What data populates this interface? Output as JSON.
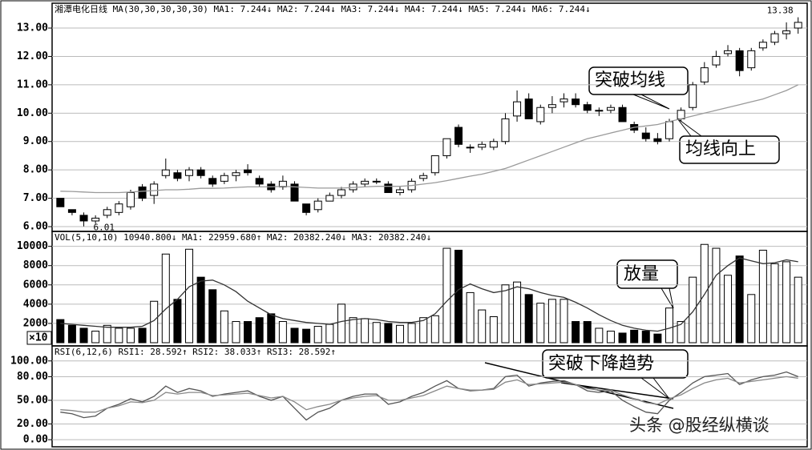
{
  "chart_data": [
    {
      "type": "candlestick",
      "title": "湘潭电化日线 MA(30,30,30,30,30) MA1: 7.244↓ MA2: 7.244↓ MA3: 7.244↓ MA4: 7.244↓ MA5: 7.244↓ MA6: 7.244↓",
      "ylim": [
        5.86,
        13.65
      ],
      "yticks": [
        {
          "value": 6,
          "label": "6.00"
        },
        {
          "value": 7,
          "label": "7.00"
        },
        {
          "value": 8,
          "label": "8.00"
        },
        {
          "value": 9,
          "label": "9.00"
        },
        {
          "value": 10,
          "label": "10.00"
        },
        {
          "value": 11,
          "label": "11.00"
        },
        {
          "value": 12,
          "label": "12.00"
        },
        {
          "value": 13,
          "label": "13.00"
        }
      ],
      "grid": true,
      "candles": [
        [
          7.0,
          7.0,
          6.7,
          6.7
        ],
        [
          6.6,
          6.6,
          6.4,
          6.5
        ],
        [
          6.4,
          6.5,
          6.01,
          6.2
        ],
        [
          6.2,
          6.4,
          6.1,
          6.3
        ],
        [
          6.4,
          6.7,
          6.3,
          6.6
        ],
        [
          6.5,
          6.9,
          6.4,
          6.8
        ],
        [
          6.7,
          7.3,
          6.6,
          7.2
        ],
        [
          7.4,
          7.5,
          6.9,
          7.0
        ],
        [
          7.1,
          7.6,
          6.8,
          7.5
        ],
        [
          7.8,
          8.4,
          7.7,
          8.0
        ],
        [
          7.9,
          8.0,
          7.6,
          7.7
        ],
        [
          7.8,
          8.1,
          7.6,
          8.0
        ],
        [
          8.0,
          8.1,
          7.7,
          7.8
        ],
        [
          7.7,
          7.8,
          7.4,
          7.5
        ],
        [
          7.6,
          7.9,
          7.5,
          7.8
        ],
        [
          7.8,
          8.0,
          7.6,
          7.9
        ],
        [
          8.0,
          8.2,
          7.8,
          7.9
        ],
        [
          7.7,
          7.8,
          7.4,
          7.5
        ],
        [
          7.5,
          7.6,
          7.2,
          7.3
        ],
        [
          7.4,
          7.8,
          7.3,
          7.6
        ],
        [
          7.5,
          7.6,
          6.9,
          6.9
        ],
        [
          6.8,
          6.8,
          6.4,
          6.5
        ],
        [
          6.6,
          7.0,
          6.5,
          6.9
        ],
        [
          6.9,
          7.2,
          6.9,
          7.1
        ],
        [
          7.1,
          7.4,
          7.0,
          7.3
        ],
        [
          7.3,
          7.6,
          7.2,
          7.5
        ],
        [
          7.5,
          7.7,
          7.4,
          7.6
        ],
        [
          7.6,
          7.7,
          7.5,
          7.6
        ],
        [
          7.5,
          7.6,
          7.2,
          7.2
        ],
        [
          7.2,
          7.4,
          7.1,
          7.3
        ],
        [
          7.3,
          7.7,
          7.2,
          7.6
        ],
        [
          7.7,
          7.9,
          7.6,
          7.8
        ],
        [
          7.9,
          8.5,
          7.8,
          8.5
        ],
        [
          8.5,
          9.1,
          8.4,
          9.1
        ],
        [
          9.5,
          9.6,
          8.8,
          8.9
        ],
        [
          8.8,
          8.9,
          8.6,
          8.8
        ],
        [
          8.8,
          9.0,
          8.7,
          8.9
        ],
        [
          8.8,
          9.1,
          8.7,
          9.0
        ],
        [
          9.0,
          10.0,
          8.9,
          9.8
        ],
        [
          9.9,
          10.8,
          9.7,
          10.4
        ],
        [
          10.5,
          10.7,
          9.8,
          9.8
        ],
        [
          9.7,
          10.3,
          9.6,
          10.2
        ],
        [
          10.2,
          10.6,
          10.0,
          10.3
        ],
        [
          10.4,
          10.7,
          10.2,
          10.5
        ],
        [
          10.5,
          10.7,
          10.2,
          10.3
        ],
        [
          10.3,
          10.4,
          10.0,
          10.1
        ],
        [
          10.1,
          10.2,
          9.9,
          10.1
        ],
        [
          10.1,
          10.3,
          10.0,
          10.2
        ],
        [
          10.2,
          10.3,
          9.7,
          9.7
        ],
        [
          9.6,
          9.7,
          9.3,
          9.4
        ],
        [
          9.3,
          9.5,
          9.0,
          9.1
        ],
        [
          9.1,
          9.3,
          8.9,
          9.0
        ],
        [
          9.1,
          9.8,
          9.0,
          9.7
        ],
        [
          9.8,
          10.2,
          9.7,
          10.1
        ],
        [
          10.2,
          11.1,
          10.1,
          11.0
        ],
        [
          11.1,
          11.8,
          11.0,
          11.6
        ],
        [
          11.7,
          12.2,
          11.6,
          12.0
        ],
        [
          12.1,
          12.4,
          12.0,
          12.2
        ],
        [
          12.2,
          12.3,
          11.3,
          11.5
        ],
        [
          11.6,
          12.3,
          11.5,
          12.2
        ],
        [
          12.3,
          12.6,
          12.2,
          12.5
        ],
        [
          12.5,
          12.9,
          12.4,
          12.8
        ],
        [
          12.8,
          13.2,
          12.6,
          12.9
        ],
        [
          13.0,
          13.38,
          12.8,
          13.2
        ]
      ],
      "up_color": "#ffffff",
      "down_color": "#000000",
      "series": [
        {
          "color": "#9a9a9a",
          "values": [
            7.25,
            7.24,
            7.22,
            7.2,
            7.2,
            7.2,
            7.22,
            7.25,
            7.27,
            7.3,
            7.3,
            7.32,
            7.35,
            7.35,
            7.36,
            7.38,
            7.4,
            7.4,
            7.4,
            7.42,
            7.4,
            7.38,
            7.36,
            7.36,
            7.36,
            7.38,
            7.4,
            7.42,
            7.42,
            7.42,
            7.45,
            7.5,
            7.55,
            7.62,
            7.7,
            7.78,
            7.85,
            7.95,
            8.05,
            8.2,
            8.35,
            8.5,
            8.65,
            8.8,
            8.95,
            9.1,
            9.2,
            9.3,
            9.4,
            9.5,
            9.55,
            9.6,
            9.7,
            9.8,
            9.9,
            10.0,
            10.1,
            10.2,
            10.3,
            10.4,
            10.5,
            10.65,
            10.8,
            11.0
          ]
        }
      ],
      "high_label": 13.38,
      "low_label": 6.01,
      "annotations": [
        "突破均线",
        "均线向上"
      ]
    },
    {
      "type": "bar",
      "title": "VOL(5,10,10) 10940.800↓ MA1: 22959.680↑ MA2: 20382.240↓ MA3: 20382.240↓",
      "ylim": [
        0,
        11300
      ],
      "yticks": [
        2000,
        4000,
        6000,
        8000,
        10000
      ],
      "grid": true,
      "unit_label": "×10",
      "values": [
        2400,
        1800,
        1500,
        1200,
        1800,
        1500,
        1500,
        1500,
        4300,
        9200,
        4500,
        9700,
        6800,
        5500,
        3300,
        2200,
        2200,
        2600,
        3000,
        2200,
        1500,
        1400,
        1700,
        1900,
        4000,
        2600,
        2500,
        2100,
        2000,
        1800,
        2000,
        2600,
        2800,
        9800,
        9600,
        5200,
        3400,
        2700,
        6000,
        6300,
        5000,
        4100,
        4500,
        4500,
        2200,
        2200,
        1500,
        1200,
        1000,
        1300,
        1200,
        900,
        3600,
        2200,
        6800,
        10200,
        9800,
        7000,
        9000,
        5000,
        9600,
        8200,
        8400,
        6800
      ],
      "series": [
        {
          "color": "#333333",
          "values": [
            2000,
            1900,
            1800,
            1700,
            1600,
            1600,
            1600,
            1700,
            2300,
            3500,
            4500,
            5800,
            6400,
            6500,
            6000,
            5300,
            4300,
            3600,
            2900,
            2500,
            2300,
            2100,
            2000,
            1900,
            2200,
            2400,
            2500,
            2400,
            2200,
            2100,
            2100,
            2300,
            3000,
            4300,
            5500,
            6100,
            5600,
            5200,
            5400,
            5800,
            5600,
            5200,
            4900,
            4700,
            4200,
            3600,
            2900,
            2300,
            1800,
            1500,
            1300,
            1200,
            1500,
            1900,
            3200,
            5000,
            7000,
            8000,
            8800,
            8500,
            8200,
            8300,
            8600,
            8400
          ]
        }
      ],
      "annotations": [
        "放量"
      ]
    },
    {
      "type": "line",
      "title": "RSI(6,12,6) RSI1: 28.592↑ RSI2: 38.033↑ RSI3: 28.592↑",
      "ylim": [
        -7,
        114
      ],
      "yticks": [
        {
          "value": 0,
          "label": "0.00"
        },
        {
          "value": 20,
          "label": "20.00"
        },
        {
          "value": 50,
          "label": "50.00"
        },
        {
          "value": 80,
          "label": "80.00"
        },
        {
          "value": 100,
          "label": "100.00"
        }
      ],
      "grid": true,
      "series": [
        {
          "color": "#555555",
          "values": [
            35,
            33,
            28,
            30,
            40,
            45,
            52,
            48,
            55,
            68,
            60,
            65,
            62,
            55,
            58,
            60,
            62,
            55,
            50,
            55,
            40,
            25,
            35,
            40,
            50,
            55,
            58,
            58,
            45,
            48,
            55,
            60,
            68,
            75,
            65,
            62,
            63,
            65,
            80,
            82,
            68,
            72,
            74,
            75,
            70,
            62,
            60,
            62,
            50,
            42,
            35,
            33,
            50,
            60,
            72,
            80,
            82,
            84,
            70,
            76,
            80,
            82,
            86,
            80
          ]
        },
        {
          "color": "#888888",
          "values": [
            38,
            37,
            35,
            35,
            40,
            43,
            48,
            47,
            50,
            60,
            58,
            60,
            60,
            56,
            57,
            58,
            59,
            56,
            53,
            55,
            48,
            38,
            42,
            45,
            50,
            53,
            55,
            56,
            50,
            50,
            53,
            56,
            62,
            68,
            65,
            63,
            63,
            64,
            73,
            76,
            70,
            71,
            72,
            73,
            70,
            65,
            63,
            63,
            57,
            52,
            47,
            45,
            52,
            57,
            65,
            72,
            76,
            78,
            72,
            74,
            76,
            78,
            80,
            78
          ]
        }
      ],
      "annotations": [
        "突破下降趋势"
      ]
    }
  ],
  "watermark": "头条 @股经纵横谈"
}
